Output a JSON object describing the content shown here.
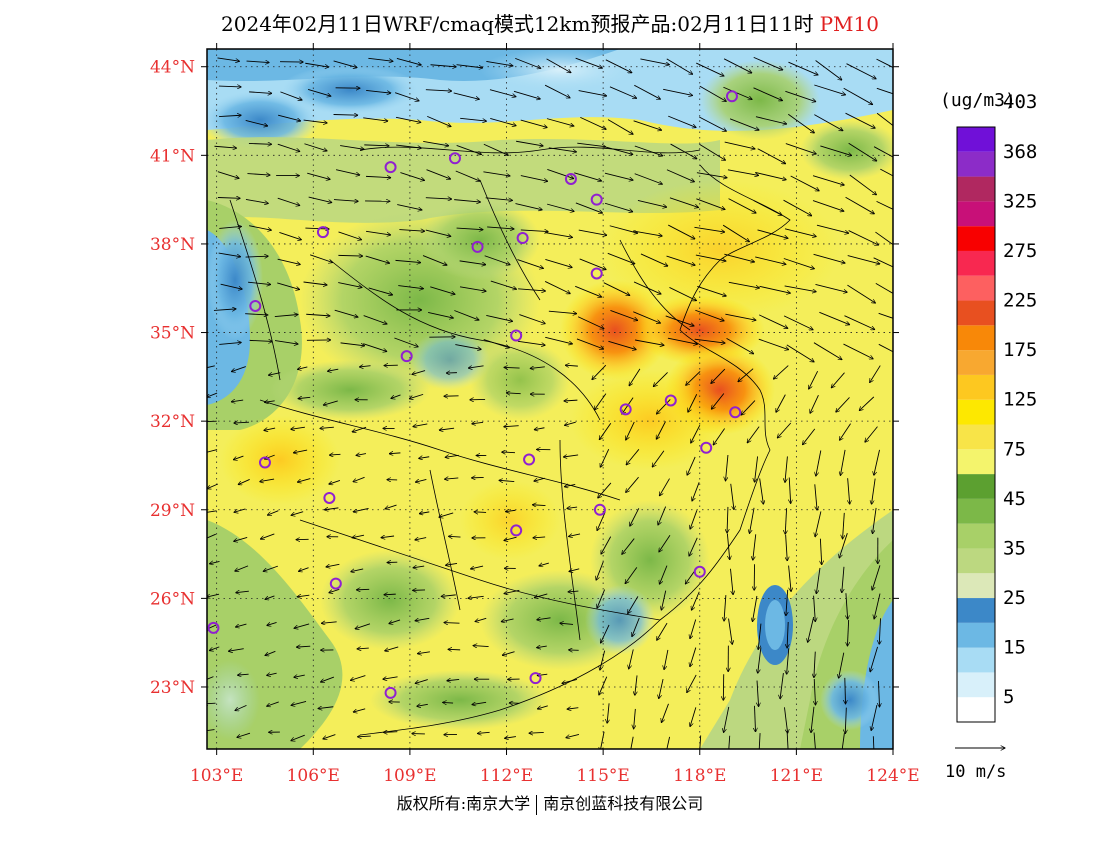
{
  "title": {
    "main": "2024年02月11日WRF/cmaq模式12km预报产品:02月11日11时",
    "pollutant": "PM10"
  },
  "footer": {
    "copyright": "版权所有:南京大学",
    "company": "南京创蓝科技有限公司"
  },
  "map": {
    "lon_range": [
      102.7,
      124.0
    ],
    "lat_range": [
      20.9,
      44.6
    ],
    "lat_labels": [
      "44°N",
      "41°N",
      "38°N",
      "35°N",
      "32°N",
      "29°N",
      "26°N",
      "23°N"
    ],
    "lat_values": [
      44,
      41,
      38,
      35,
      32,
      29,
      26,
      23
    ],
    "lon_labels": [
      "103°E",
      "106°E",
      "109°E",
      "112°E",
      "115°E",
      "118°E",
      "121°E",
      "124°E"
    ],
    "lon_values": [
      103,
      106,
      109,
      112,
      115,
      118,
      121,
      124
    ],
    "tick_color": "#e83030",
    "sea_color": "#f4ee5a",
    "marker_color": "#9020d0",
    "city_markers": [
      {
        "lon": 119.0,
        "lat": 43.0
      },
      {
        "lon": 110.4,
        "lat": 40.9
      },
      {
        "lon": 108.4,
        "lat": 40.6
      },
      {
        "lon": 114.0,
        "lat": 40.2
      },
      {
        "lon": 114.8,
        "lat": 39.5
      },
      {
        "lon": 106.3,
        "lat": 38.4
      },
      {
        "lon": 111.1,
        "lat": 37.9
      },
      {
        "lon": 112.5,
        "lat": 38.2
      },
      {
        "lon": 114.8,
        "lat": 37.0
      },
      {
        "lon": 104.2,
        "lat": 35.9
      },
      {
        "lon": 108.9,
        "lat": 34.2
      },
      {
        "lon": 112.3,
        "lat": 34.9
      },
      {
        "lon": 115.7,
        "lat": 32.4
      },
      {
        "lon": 117.1,
        "lat": 32.7
      },
      {
        "lon": 119.1,
        "lat": 32.3
      },
      {
        "lon": 118.2,
        "lat": 31.1
      },
      {
        "lon": 104.5,
        "lat": 30.6
      },
      {
        "lon": 112.7,
        "lat": 30.7
      },
      {
        "lon": 106.5,
        "lat": 29.4
      },
      {
        "lon": 114.9,
        "lat": 29.0
      },
      {
        "lon": 112.3,
        "lat": 28.3
      },
      {
        "lon": 106.7,
        "lat": 26.5
      },
      {
        "lon": 118.0,
        "lat": 26.9
      },
      {
        "lon": 102.9,
        "lat": 25.0
      },
      {
        "lon": 108.4,
        "lat": 22.8
      },
      {
        "lon": 112.9,
        "lat": 23.3
      }
    ]
  },
  "legend": {
    "units": "(ug/m3)",
    "colors": [
      "#ffffff",
      "#d8f0fa",
      "#a8dcf4",
      "#6cb8e4",
      "#3c88c8",
      "#dce8b8",
      "#bcd880",
      "#a8d068",
      "#7cb848",
      "#5ca030",
      "#f4f46c",
      "#f8e448",
      "#fde800",
      "#fdc820",
      "#f8a830",
      "#f88808",
      "#e85020",
      "#fd6060",
      "#f82850",
      "#f80000",
      "#c81078",
      "#b02860",
      "#8c2cc8",
      "#7010d8"
    ],
    "labels": [
      "5",
      "15",
      "25",
      "35",
      "45",
      "75",
      "125",
      "175",
      "225",
      "275",
      "325",
      "368",
      "403"
    ],
    "wind_ref_label": "10 m/s"
  }
}
